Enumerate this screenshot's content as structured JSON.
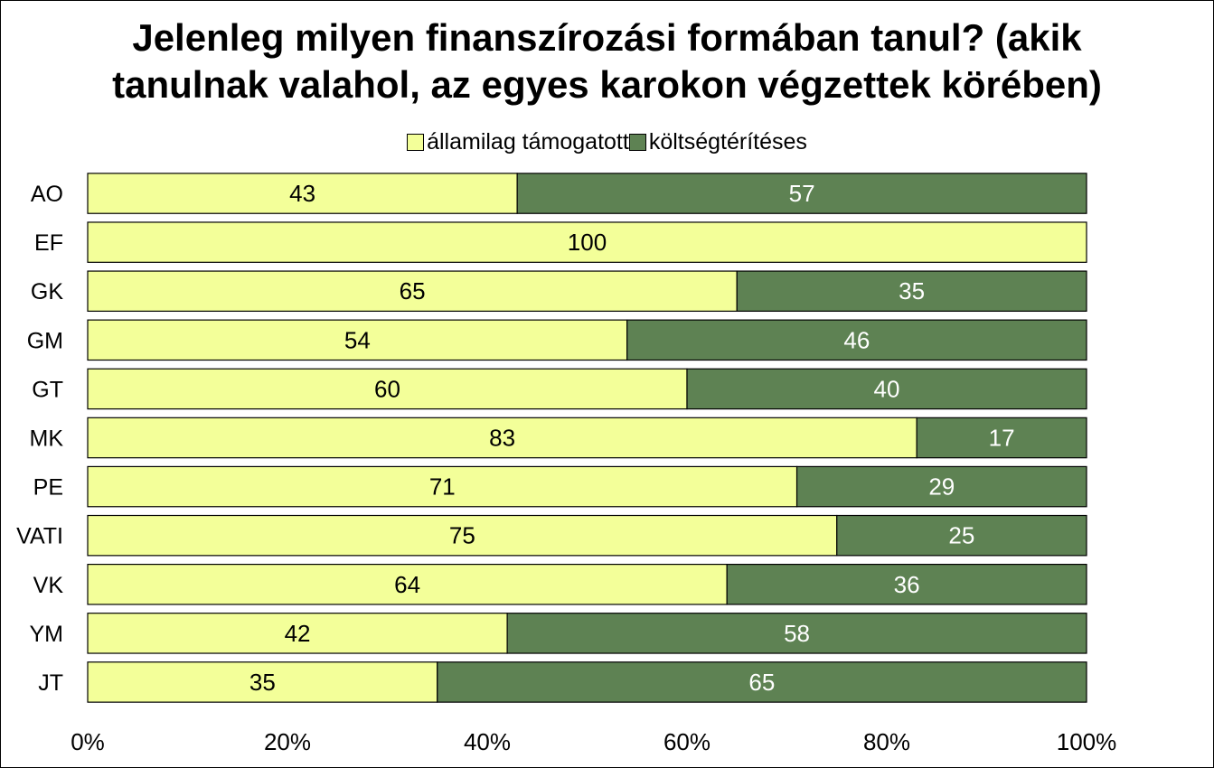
{
  "chart_data": {
    "type": "bar",
    "orientation": "horizontal",
    "stacked": true,
    "title_line1": "Jelenleg milyen finanszírozási formában tanul? (akik",
    "title_line2": "tanulnak valahol, az egyes karokon végzettek körében)",
    "categories": [
      "AO",
      "EF",
      "GK",
      "GM",
      "GT",
      "MK",
      "PE",
      "VATI",
      "VK",
      "YM",
      "JT"
    ],
    "series": [
      {
        "name": "államilag támogatott",
        "color": "#F3FF99",
        "label_color": "#000000",
        "values": [
          43,
          100,
          65,
          54,
          60,
          83,
          71,
          75,
          64,
          42,
          35
        ]
      },
      {
        "name": "költségtérítéses",
        "color": "#5E8253",
        "label_color": "#ffffff",
        "values": [
          57,
          0,
          35,
          46,
          40,
          17,
          29,
          25,
          36,
          58,
          65
        ]
      }
    ],
    "x_ticks": [
      "0%",
      "20%",
      "40%",
      "60%",
      "80%",
      "100%"
    ],
    "xlim": [
      0,
      100
    ],
    "grid": false,
    "legend_position": "top"
  }
}
